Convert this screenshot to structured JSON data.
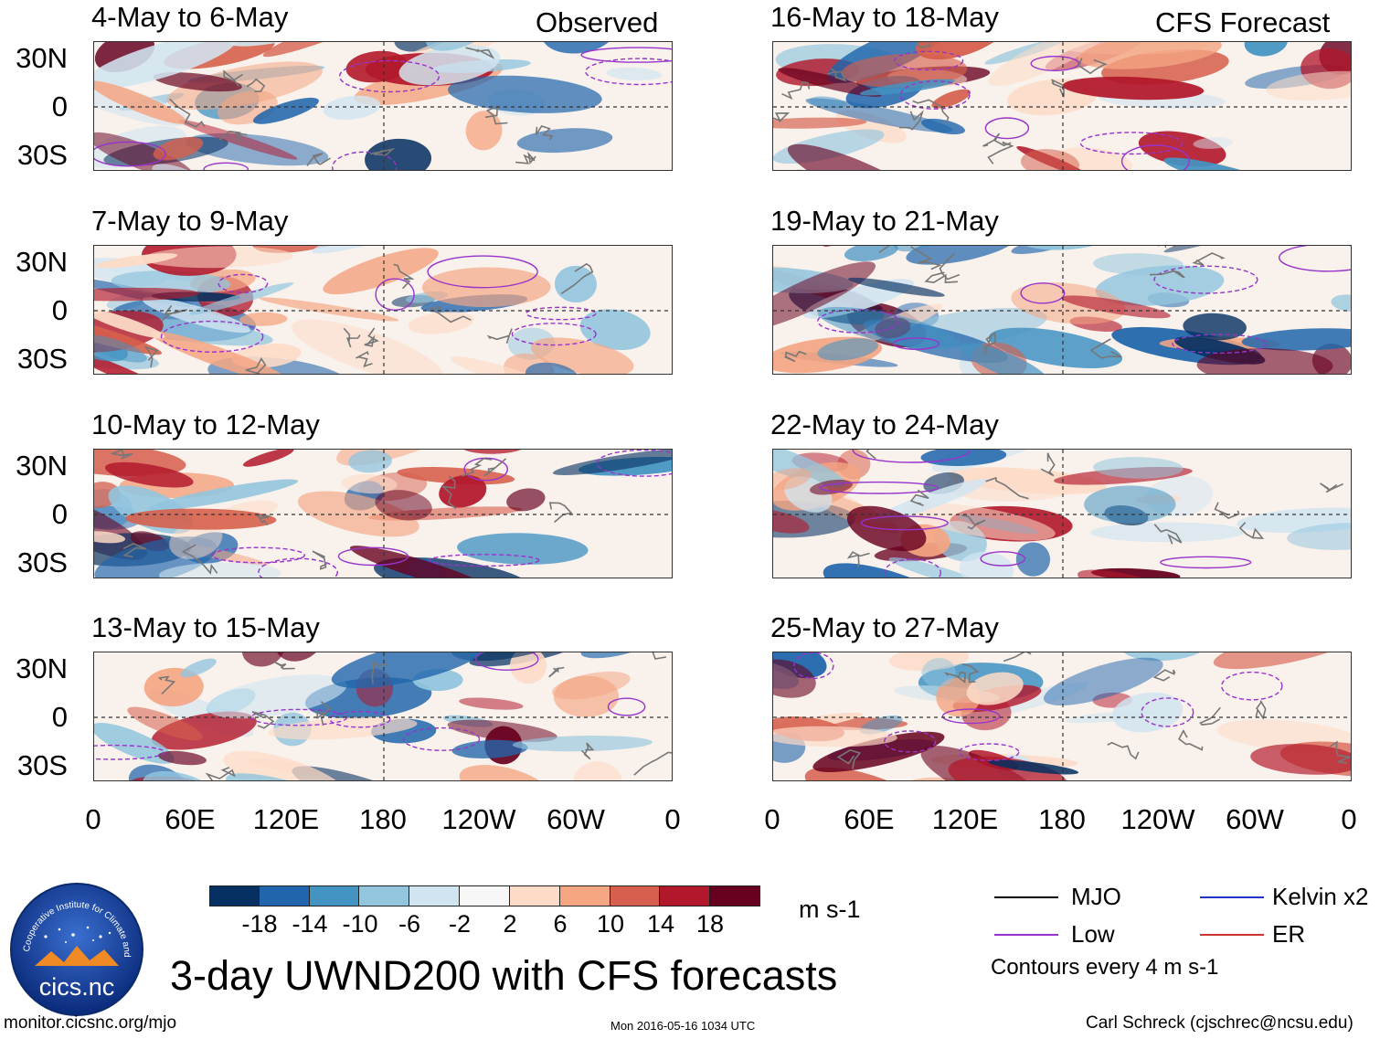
{
  "header": {
    "left_label": "Observed",
    "right_label": "CFS Forecast"
  },
  "panels": {
    "observed": [
      {
        "title": "4-May to 6-May"
      },
      {
        "title": "7-May to 9-May"
      },
      {
        "title": "10-May to 12-May"
      },
      {
        "title": "13-May to 15-May"
      }
    ],
    "forecast": [
      {
        "title": "16-May to 18-May"
      },
      {
        "title": "19-May to 21-May"
      },
      {
        "title": "22-May to 24-May"
      },
      {
        "title": "25-May to 27-May"
      }
    ]
  },
  "lat_labels": [
    "30N",
    "0",
    "30S"
  ],
  "lon_labels": [
    "0",
    "60E",
    "120E",
    "180",
    "120W",
    "60W",
    "0"
  ],
  "colorbar": {
    "ticks": [
      "-18",
      "-14",
      "-10",
      "-6",
      "-2",
      "2",
      "6",
      "10",
      "14",
      "18"
    ],
    "colors": [
      "#053061",
      "#2166ac",
      "#4393c3",
      "#92c5de",
      "#d1e5f0",
      "#f7f7f7",
      "#fddbc7",
      "#f4a582",
      "#d6604d",
      "#b2182b",
      "#67001f"
    ],
    "units": "m s-1"
  },
  "legend": {
    "items": [
      {
        "label": "MJO",
        "color": "#000000"
      },
      {
        "label": "Kelvin x2",
        "color": "#2233cc"
      },
      {
        "label": "Low",
        "color": "#9933cc"
      },
      {
        "label": "ER",
        "color": "#cc3333"
      }
    ],
    "contour_note": "Contours every 4 m s-1"
  },
  "logo": {
    "text": "cics.nc",
    "ring_text": "Cooperative Institute for Climate and Satellites"
  },
  "main_title": "3-day UWND200 with CFS forecasts",
  "footer": {
    "url": "monitor.cicsnc.org/mjo",
    "timestamp": "Mon 2016-05-16 1034 UTC",
    "credit": "Carl Schreck (cjschrec@ncsu.edu)"
  },
  "map_features": {
    "equator_line": "dashed",
    "dateline": "dashed",
    "coastlines": "gray"
  }
}
